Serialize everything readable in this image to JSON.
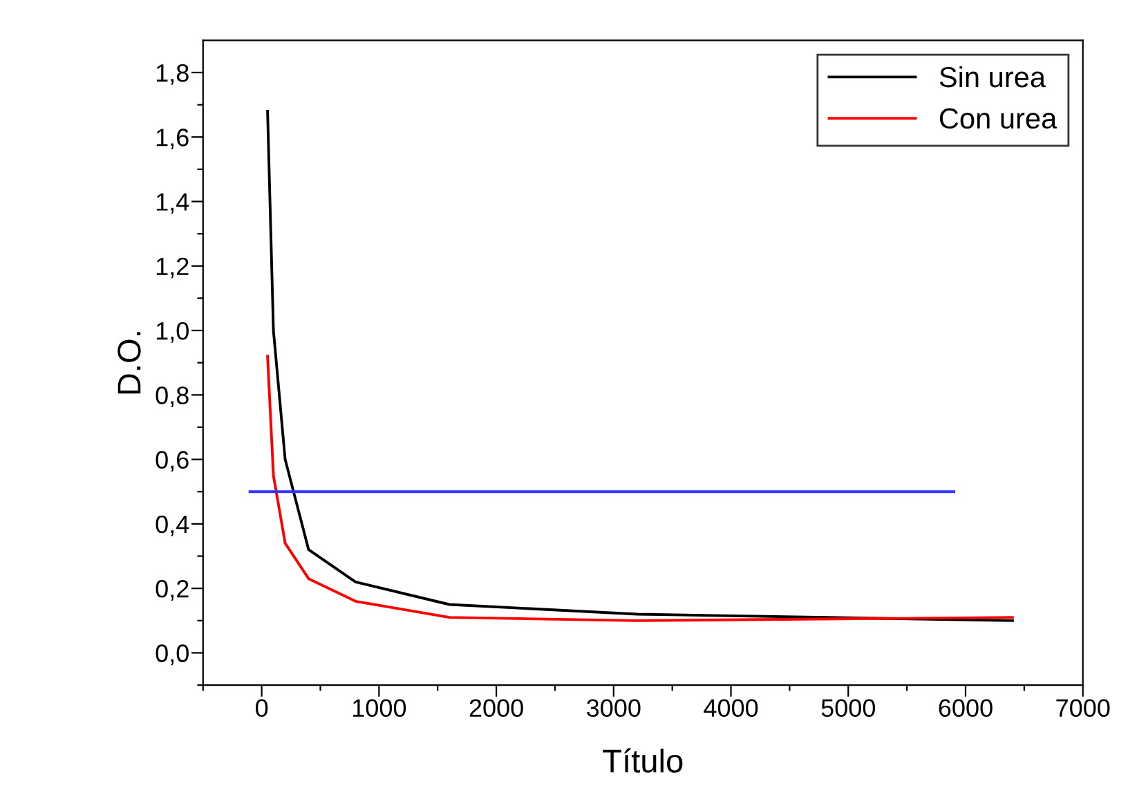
{
  "chart_data": {
    "type": "line",
    "xlabel": "Título",
    "ylabel": "D.O.",
    "xlim": [
      -500,
      7000
    ],
    "ylim": [
      -0.1,
      1.9
    ],
    "xticks": [
      {
        "value": -500,
        "label": null
      },
      0,
      {
        "value": 500,
        "label": null
      },
      1000,
      {
        "value": 1500,
        "label": null
      },
      2000,
      {
        "value": 2500,
        "label": null
      },
      3000,
      {
        "value": 3500,
        "label": null
      },
      4000,
      {
        "value": 4500,
        "label": null
      },
      5000,
      {
        "value": 5500,
        "label": null
      },
      6000,
      {
        "value": 6500,
        "label": null
      },
      7000
    ],
    "yticks": [
      {
        "value": -0.1,
        "label": null
      },
      {
        "value": 0,
        "label": "0,0"
      },
      {
        "value": 0.1,
        "label": null
      },
      {
        "value": 0.2,
        "label": "0,2"
      },
      {
        "value": 0.3,
        "label": null
      },
      {
        "value": 0.4,
        "label": "0,4"
      },
      {
        "value": 0.5,
        "label": null
      },
      {
        "value": 0.6,
        "label": "0,6"
      },
      {
        "value": 0.7,
        "label": null
      },
      {
        "value": 0.8,
        "label": "0,8"
      },
      {
        "value": 0.9,
        "label": null
      },
      {
        "value": 1.0,
        "label": "1,0"
      },
      {
        "value": 1.1,
        "label": null
      },
      {
        "value": 1.2,
        "label": "1,2"
      },
      {
        "value": 1.3,
        "label": null
      },
      {
        "value": 1.4,
        "label": "1,4"
      },
      {
        "value": 1.5,
        "label": null
      },
      {
        "value": 1.6,
        "label": "1,6"
      },
      {
        "value": 1.7,
        "label": null
      },
      {
        "value": 1.8,
        "label": "1,8"
      }
    ],
    "x": [
      50,
      100,
      200,
      400,
      800,
      1600,
      3200,
      6400
    ],
    "series": [
      {
        "name": "Sin urea",
        "color": "#000000",
        "values": [
          1.68,
          1.0,
          0.6,
          0.32,
          0.22,
          0.15,
          0.12,
          0.1
        ]
      },
      {
        "name": "Con urea",
        "color": "#ff0000",
        "values": [
          0.92,
          0.55,
          0.34,
          0.23,
          0.16,
          0.11,
          0.1,
          0.11
        ]
      },
      {
        "color": "#3333ff",
        "x": [
          -100,
          5900
        ],
        "values": [
          0.5,
          0.5
        ]
      }
    ],
    "legend": "top right",
    "grid": false,
    "marker": "none",
    "line_style": "solid"
  }
}
